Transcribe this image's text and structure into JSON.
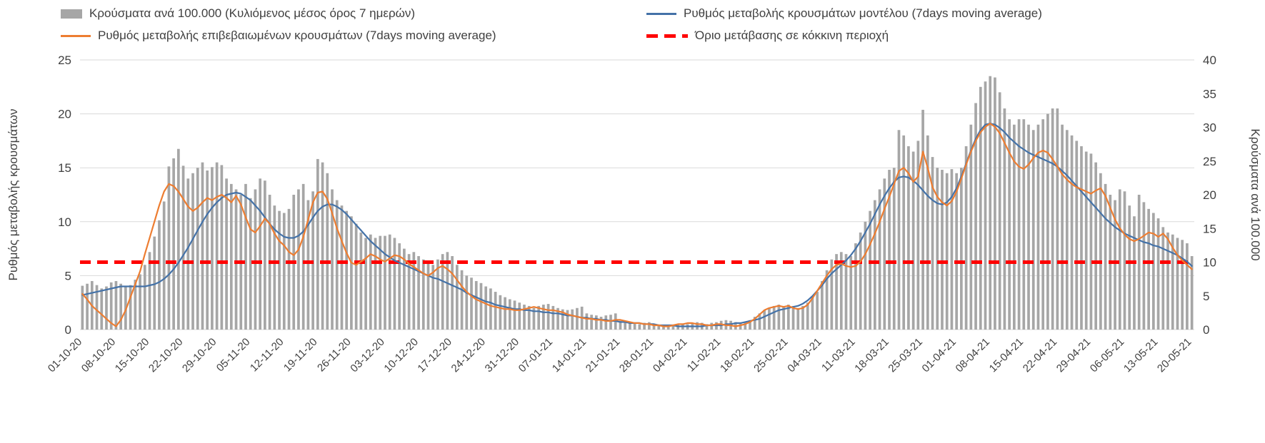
{
  "chart_data": {
    "type": "combo",
    "title": "",
    "layout": {
      "grid": true,
      "grid_color": "#d9d9d9",
      "text_color": "#404040",
      "legend_position": "top",
      "background": "#ffffff"
    },
    "left_axis": {
      "label": "Ρυθμός μεταβολής κρουσμάτων",
      "min": 0,
      "max": 25,
      "ticks": [
        0,
        5,
        10,
        15,
        20,
        25
      ]
    },
    "right_axis": {
      "label": "Κρούσματα ανά 100.000",
      "min": 0,
      "max": 40,
      "ticks": [
        0,
        5,
        10,
        15,
        20,
        25,
        30,
        35,
        40
      ]
    },
    "x_tick_labels": [
      "01-10-20",
      "08-10-20",
      "15-10-20",
      "22-10-20",
      "29-10-20",
      "05-11-20",
      "12-11-20",
      "19-11-20",
      "26-11-20",
      "03-12-20",
      "10-12-20",
      "17-12-20",
      "24-12-20",
      "31-12-20",
      "07-01-21",
      "14-01-21",
      "21-01-21",
      "28-01-21",
      "04-02-21",
      "11-02-21",
      "18-02-21",
      "25-02-21",
      "04-03-21",
      "11-03-21",
      "18-03-21",
      "25-03-21",
      "01-04-21",
      "08-04-21",
      "15-04-21",
      "22-04-21",
      "29-04-21",
      "06-05-21",
      "13-05-21",
      "20-05-21"
    ],
    "x_tick_every_n_days": 7,
    "series": [
      {
        "name": "Κρούσματα ανά 100.000 (Κυλιόμενος μέσος όρος 7 ημερών)",
        "type": "bar",
        "axis": "right",
        "color": "#a6a6a6",
        "values": [
          6.5,
          6.8,
          7.2,
          6.6,
          6.1,
          6.4,
          7.0,
          7.2,
          6.8,
          6.3,
          6.6,
          7.4,
          8.2,
          9.6,
          11.5,
          13.8,
          16.2,
          19.0,
          24.2,
          25.4,
          26.8,
          24.3,
          22.4,
          23.2,
          24.0,
          24.8,
          23.6,
          24.1,
          24.8,
          24.4,
          22.4,
          21.6,
          20.8,
          20.0,
          21.6,
          19.5,
          20.8,
          22.4,
          22.1,
          20.0,
          18.4,
          17.6,
          17.3,
          17.9,
          20.0,
          20.8,
          21.6,
          19.2,
          20.5,
          25.3,
          24.8,
          23.2,
          20.8,
          19.2,
          18.4,
          17.6,
          16.8,
          15.7,
          14.4,
          13.6,
          14.1,
          13.6,
          13.9,
          13.9,
          14.1,
          13.6,
          12.8,
          12.0,
          11.2,
          11.5,
          10.9,
          10.4,
          10.1,
          9.6,
          10.4,
          11.2,
          11.5,
          10.9,
          9.6,
          8.8,
          8.0,
          7.7,
          7.2,
          6.9,
          6.4,
          6.1,
          5.6,
          5.1,
          4.8,
          4.5,
          4.3,
          4.0,
          3.7,
          3.5,
          3.2,
          3.5,
          3.7,
          3.8,
          3.5,
          3.2,
          3.0,
          2.9,
          3.0,
          3.2,
          3.4,
          2.4,
          2.2,
          2.1,
          1.9,
          2.1,
          2.2,
          2.4,
          1.3,
          1.1,
          1.0,
          1.0,
          0.8,
          1.0,
          1.1,
          0.8,
          0.6,
          0.6,
          0.5,
          0.6,
          0.8,
          0.8,
          0.8,
          1.0,
          1.1,
          1.0,
          0.8,
          1.0,
          1.1,
          1.3,
          1.4,
          1.3,
          1.1,
          1.0,
          1.1,
          1.4,
          1.9,
          2.4,
          2.9,
          3.2,
          3.5,
          3.7,
          3.5,
          3.7,
          3.5,
          3.2,
          3.5,
          4.0,
          4.8,
          5.6,
          7.2,
          8.8,
          10.4,
          11.2,
          11.5,
          11.2,
          10.9,
          12.8,
          14.4,
          16.0,
          17.6,
          19.2,
          20.8,
          22.4,
          23.7,
          24.0,
          29.6,
          28.8,
          27.2,
          26.4,
          28.0,
          32.6,
          28.8,
          25.6,
          24.0,
          23.7,
          23.2,
          23.8,
          23.2,
          24.0,
          27.2,
          30.4,
          33.6,
          36.0,
          36.8,
          37.6,
          37.4,
          35.2,
          32.8,
          31.2,
          30.4,
          31.2,
          31.2,
          30.4,
          29.6,
          30.4,
          31.2,
          32.0,
          32.8,
          32.8,
          30.4,
          29.6,
          28.8,
          28.0,
          27.2,
          26.4,
          26.1,
          24.8,
          23.2,
          21.6,
          20.0,
          19.2,
          20.8,
          20.5,
          18.4,
          16.8,
          20.0,
          18.9,
          17.9,
          17.3,
          16.5,
          15.2,
          14.4,
          14.1,
          13.6,
          13.3,
          12.8,
          10.9
        ]
      },
      {
        "name": "Ρυθμός μεταβολής κρουσμάτων μοντέλου (7days moving average)",
        "type": "line",
        "axis": "left",
        "color": "#4472a8",
        "values": [
          3.2,
          3.3,
          3.4,
          3.5,
          3.6,
          3.7,
          3.8,
          3.9,
          4.0,
          4.0,
          4.0,
          4.0,
          4.0,
          4.0,
          4.1,
          4.2,
          4.4,
          4.7,
          5.1,
          5.6,
          6.2,
          6.9,
          7.6,
          8.4,
          9.2,
          10.0,
          10.7,
          11.3,
          11.8,
          12.2,
          12.5,
          12.6,
          12.7,
          12.6,
          12.3,
          12.0,
          11.5,
          11.0,
          10.4,
          9.8,
          9.3,
          8.9,
          8.6,
          8.5,
          8.5,
          8.7,
          9.1,
          9.7,
          10.4,
          11.0,
          11.4,
          11.6,
          11.6,
          11.4,
          11.1,
          10.7,
          10.2,
          9.7,
          9.2,
          8.7,
          8.2,
          7.8,
          7.4,
          7.0,
          6.7,
          6.4,
          6.2,
          6.0,
          5.8,
          5.6,
          5.4,
          5.2,
          5.0,
          4.8,
          4.7,
          4.5,
          4.3,
          4.1,
          3.9,
          3.7,
          3.4,
          3.2,
          3.0,
          2.8,
          2.6,
          2.5,
          2.3,
          2.2,
          2.1,
          2.0,
          1.9,
          1.9,
          1.8,
          1.8,
          1.7,
          1.7,
          1.6,
          1.6,
          1.5,
          1.5,
          1.4,
          1.3,
          1.3,
          1.2,
          1.1,
          1.1,
          1.0,
          1.0,
          0.9,
          0.9,
          0.8,
          0.8,
          0.7,
          0.7,
          0.6,
          0.6,
          0.6,
          0.5,
          0.5,
          0.5,
          0.4,
          0.4,
          0.4,
          0.4,
          0.3,
          0.3,
          0.3,
          0.3,
          0.3,
          0.3,
          0.4,
          0.4,
          0.4,
          0.4,
          0.5,
          0.5,
          0.6,
          0.6,
          0.7,
          0.8,
          0.9,
          1.0,
          1.2,
          1.4,
          1.6,
          1.8,
          1.9,
          2.0,
          2.1,
          2.2,
          2.4,
          2.7,
          3.1,
          3.6,
          4.1,
          4.7,
          5.2,
          5.6,
          6.0,
          6.4,
          6.9,
          7.5,
          8.2,
          9.0,
          9.8,
          10.7,
          11.6,
          12.4,
          13.1,
          13.7,
          14.1,
          14.2,
          14.1,
          13.8,
          13.4,
          12.9,
          12.4,
          12.0,
          11.7,
          11.6,
          11.8,
          12.3,
          13.1,
          14.2,
          15.4,
          16.6,
          17.7,
          18.5,
          19.0,
          19.1,
          19.0,
          18.7,
          18.3,
          17.8,
          17.4,
          17.0,
          16.7,
          16.4,
          16.2,
          16.0,
          15.8,
          15.6,
          15.4,
          15.1,
          14.7,
          14.3,
          13.8,
          13.3,
          12.8,
          12.3,
          11.8,
          11.3,
          10.8,
          10.3,
          9.9,
          9.5,
          9.2,
          8.9,
          8.7,
          8.5,
          8.3,
          8.1,
          8.0,
          7.8,
          7.7,
          7.5,
          7.3,
          7.1,
          6.9,
          6.6,
          6.3,
          5.9
        ]
      },
      {
        "name": "Ρυθμός μεταβολής επιβεβαιωμένων κρουσμάτων (7days moving average)",
        "type": "line",
        "axis": "left",
        "color": "#ed7d31",
        "values": [
          3.3,
          2.8,
          2.2,
          1.8,
          1.4,
          1.0,
          0.6,
          0.3,
          0.9,
          1.8,
          3.0,
          4.2,
          5.4,
          7.0,
          8.5,
          10.0,
          11.5,
          12.8,
          13.5,
          13.3,
          12.8,
          12.1,
          11.4,
          11.0,
          11.3,
          11.8,
          12.2,
          12.0,
          12.3,
          12.5,
          12.2,
          11.8,
          12.4,
          11.6,
          10.4,
          9.3,
          9.0,
          9.6,
          10.3,
          9.8,
          8.9,
          8.2,
          7.8,
          7.2,
          6.9,
          7.4,
          8.6,
          10.2,
          11.8,
          12.7,
          12.8,
          12.1,
          10.8,
          9.4,
          8.2,
          7.1,
          6.2,
          6.0,
          6.3,
          6.6,
          7.0,
          6.8,
          6.5,
          6.3,
          6.6,
          6.9,
          6.8,
          6.5,
          6.1,
          5.8,
          5.5,
          5.2,
          5.0,
          5.3,
          5.7,
          5.9,
          5.6,
          5.2,
          4.6,
          4.0,
          3.5,
          3.1,
          2.8,
          2.6,
          2.4,
          2.2,
          2.1,
          2.0,
          1.9,
          1.9,
          1.8,
          1.8,
          1.9,
          2.0,
          2.1,
          2.0,
          1.9,
          1.8,
          1.8,
          1.7,
          1.6,
          1.4,
          1.3,
          1.2,
          1.1,
          1.0,
          1.0,
          0.9,
          0.9,
          0.8,
          0.8,
          0.9,
          0.9,
          0.8,
          0.7,
          0.6,
          0.6,
          0.5,
          0.5,
          0.4,
          0.4,
          0.3,
          0.3,
          0.4,
          0.5,
          0.5,
          0.6,
          0.6,
          0.5,
          0.5,
          0.4,
          0.4,
          0.5,
          0.5,
          0.4,
          0.4,
          0.3,
          0.4,
          0.5,
          0.7,
          1.0,
          1.4,
          1.8,
          2.0,
          2.1,
          2.2,
          2.1,
          2.2,
          2.0,
          1.9,
          2.0,
          2.3,
          2.9,
          3.6,
          4.3,
          5.0,
          5.6,
          6.0,
          6.1,
          5.9,
          5.8,
          5.9,
          6.3,
          7.0,
          7.9,
          8.9,
          10.0,
          11.2,
          12.3,
          13.5,
          14.7,
          15.0,
          14.5,
          13.7,
          14.2,
          16.5,
          15.0,
          13.2,
          12.3,
          11.8,
          11.5,
          11.9,
          12.8,
          14.0,
          15.3,
          16.5,
          17.5,
          18.3,
          18.8,
          19.1,
          18.8,
          18.2,
          17.3,
          16.4,
          15.6,
          15.1,
          14.9,
          15.3,
          15.9,
          16.4,
          16.6,
          16.4,
          15.8,
          15.1,
          14.4,
          13.9,
          13.5,
          13.2,
          13.0,
          12.8,
          12.6,
          12.9,
          13.1,
          12.4,
          11.3,
          10.2,
          9.4,
          8.8,
          8.4,
          8.2,
          8.4,
          8.7,
          9.0,
          8.9,
          8.6,
          8.9,
          8.4,
          7.6,
          6.9,
          6.4,
          6.0,
          5.6
        ]
      },
      {
        "name": "Όριο μετάβασης σε κόκκινη περιοχή",
        "type": "threshold-line",
        "axis": "right",
        "color": "#ff0000",
        "dashed": true,
        "value": 10
      }
    ]
  }
}
